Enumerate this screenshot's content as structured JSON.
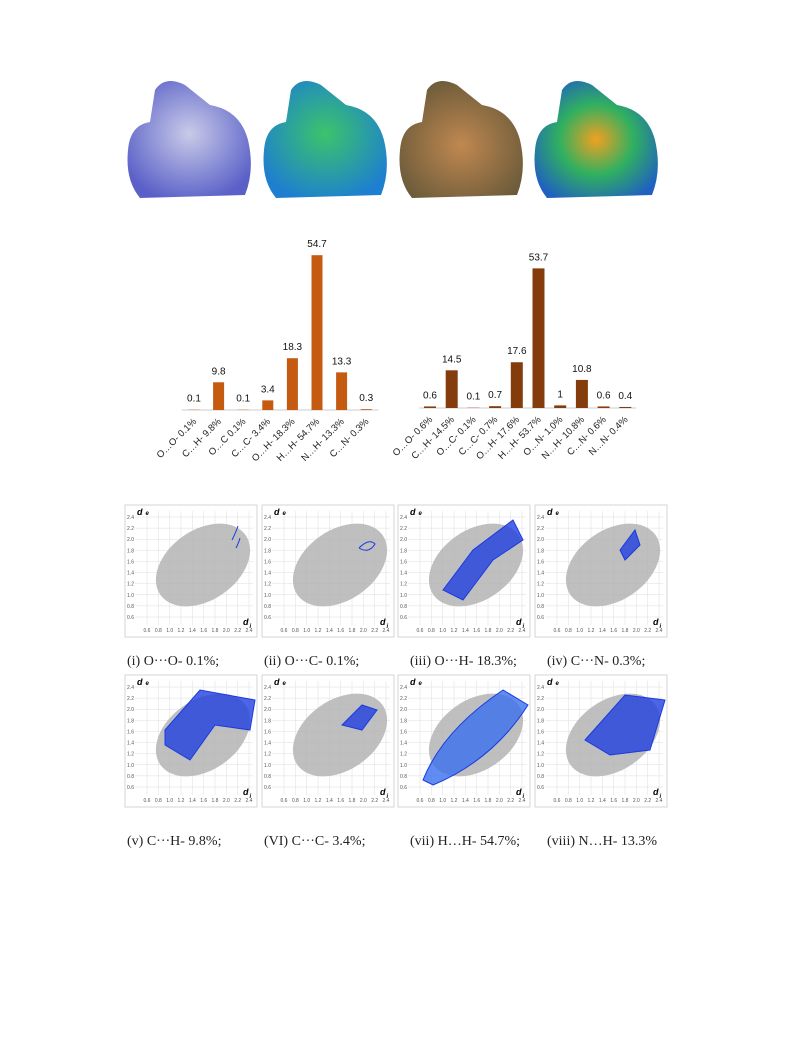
{
  "chart_data": [
    {
      "type": "bar",
      "color": "#c55a11",
      "categories": [
        "O…O- 0.1%",
        "C…H- 9.8%",
        "O…C 0.1%",
        "C…C- 3.4%",
        "O…H- 18.3%",
        "H…H- 54.7%",
        "N…H- 13.3%",
        "C…N- 0.3%"
      ],
      "values": [
        0.1,
        9.8,
        0.1,
        3.4,
        18.3,
        54.7,
        13.3,
        0.3
      ]
    },
    {
      "type": "bar",
      "color": "#843c0c",
      "categories": [
        "O…O- 0.6%",
        "C…H- 14.5%",
        "O…C- 0.1%",
        "C…C- 0.7%",
        "O…H- 17.6%",
        "H…H- 53.7%",
        "O…N- 1.0%",
        "N…H- 10.8%",
        "C…N- 0.6%",
        "N…N- 0.4%"
      ],
      "values": [
        0.6,
        14.5,
        0.1,
        0.7,
        17.6,
        53.7,
        1,
        10.8,
        0.6,
        0.4
      ]
    }
  ],
  "fingerprint_plots": {
    "y_label": {
      "main": "d",
      "sub": "e"
    },
    "x_label": {
      "main": "d",
      "sub": "i"
    },
    "ticks": [
      0.6,
      0.8,
      {
        "value": 1,
        "label": "1.0"
      },
      1.2,
      1.4,
      1.6,
      1.8,
      {
        "value": 2,
        "label": "2.0"
      },
      2.2,
      2.4
    ],
    "captions": [
      "(i) O···O- 0.1%;",
      "(ii) O···C- 0.1%;",
      "(iii) O···H- 18.3%;",
      "(iv) C···N- 0.3%;",
      "(v) C···H- 9.8%;",
      "(VI) C···C- 3.4%;",
      "(vii) H…H- 54.7%;",
      "(viii) N…H- 13.3%"
    ]
  }
}
